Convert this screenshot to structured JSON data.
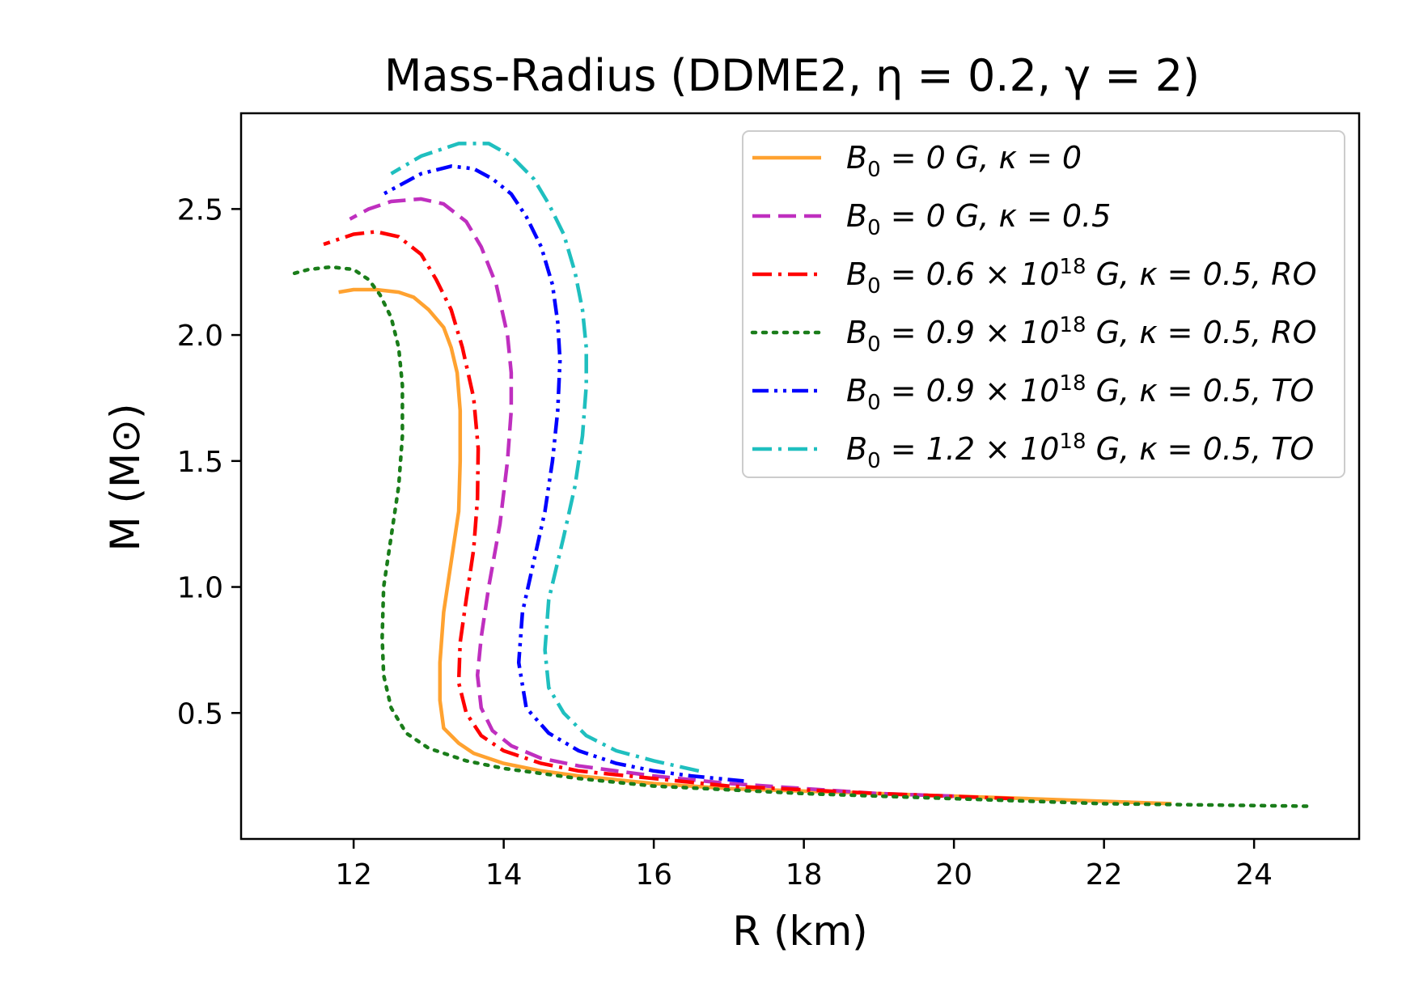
{
  "chart_data": {
    "type": "line",
    "title": "Mass-Radius (DDME2, η = 0.2, γ = 2)",
    "xlabel": "R (km)",
    "ylabel": "M (M⊙)",
    "xlim": [
      10.5,
      25.4
    ],
    "ylim": [
      0.0,
      2.88
    ],
    "xticks": [
      12,
      14,
      16,
      18,
      20,
      22,
      24
    ],
    "yticks": [
      0.5,
      1.0,
      1.5,
      2.0,
      2.5
    ],
    "xtick_labels": [
      "12",
      "14",
      "16",
      "18",
      "20",
      "22",
      "24"
    ],
    "ytick_labels": [
      "0.5",
      "1.0",
      "1.5",
      "2.0",
      "2.5"
    ],
    "grid": false,
    "legend_position": "top-right",
    "series": [
      {
        "name": "B0 = 0 G, κ = 0",
        "legend_main": "B",
        "legend_sub": "0",
        "legend_sup": "",
        "legend_rest": " = 0 G, κ = 0",
        "color": "#ffa230",
        "style": "solid",
        "x": [
          22.9,
          21.0,
          19.0,
          17.0,
          16.0,
          15.0,
          14.5,
          14.0,
          13.6,
          13.4,
          13.2,
          13.15,
          13.15,
          13.2,
          13.3,
          13.4,
          13.42,
          13.42,
          13.38,
          13.3,
          13.2,
          13.0,
          12.8,
          12.6,
          12.3,
          12.0,
          11.8
        ],
        "y": [
          0.14,
          0.16,
          0.18,
          0.2,
          0.22,
          0.25,
          0.27,
          0.3,
          0.34,
          0.38,
          0.44,
          0.55,
          0.7,
          0.9,
          1.1,
          1.3,
          1.5,
          1.7,
          1.85,
          1.95,
          2.03,
          2.1,
          2.15,
          2.17,
          2.18,
          2.18,
          2.17
        ]
      },
      {
        "name": "B0 = 0 G, κ = 0.5",
        "legend_main": "B",
        "legend_sub": "0",
        "legend_sup": "",
        "legend_rest": " = 0 G, κ = 0.5",
        "color": "#bf2fbf",
        "style": "dashed",
        "x": [
          20.0,
          19.0,
          18.0,
          17.0,
          16.0,
          15.0,
          14.5,
          14.1,
          13.85,
          13.7,
          13.65,
          13.7,
          13.8,
          13.95,
          14.05,
          14.1,
          14.1,
          14.05,
          13.9,
          13.7,
          13.5,
          13.2,
          12.9,
          12.5,
          12.2,
          11.95
        ],
        "y": [
          0.17,
          0.18,
          0.2,
          0.22,
          0.25,
          0.29,
          0.32,
          0.37,
          0.43,
          0.52,
          0.65,
          0.8,
          1.0,
          1.25,
          1.5,
          1.7,
          1.85,
          2.0,
          2.2,
          2.35,
          2.45,
          2.52,
          2.54,
          2.53,
          2.5,
          2.46
        ]
      },
      {
        "name": "B0 = 0.6 × 10^18 G, κ = 0.5, RO",
        "legend_main": "B",
        "legend_sub": "0",
        "legend_pre": " = 0.6 × 10",
        "legend_sup": "18",
        "legend_rest": " G, κ = 0.5, RO",
        "color": "#ff0000",
        "style": "dashdot",
        "x": [
          20.8,
          19.0,
          17.0,
          16.0,
          15.0,
          14.5,
          14.0,
          13.7,
          13.5,
          13.4,
          13.42,
          13.5,
          13.6,
          13.65,
          13.66,
          13.6,
          13.45,
          13.3,
          13.1,
          12.9,
          12.6,
          12.3,
          12.0,
          11.6
        ],
        "y": [
          0.16,
          0.18,
          0.21,
          0.24,
          0.27,
          0.3,
          0.35,
          0.41,
          0.5,
          0.62,
          0.78,
          0.95,
          1.15,
          1.35,
          1.55,
          1.75,
          1.95,
          2.1,
          2.22,
          2.32,
          2.39,
          2.41,
          2.4,
          2.36
        ]
      },
      {
        "name": "B0 = 0.9 × 10^18 G, κ = 0.5, RO",
        "legend_main": "B",
        "legend_sub": "0",
        "legend_pre": " = 0.9 × 10",
        "legend_sup": "18",
        "legend_rest": " G, κ = 0.5, RO",
        "color": "#1a7d1a",
        "style": "dotted",
        "x": [
          24.7,
          22.0,
          20.0,
          18.0,
          16.0,
          15.0,
          14.0,
          13.5,
          13.0,
          12.7,
          12.5,
          12.4,
          12.38,
          12.4,
          12.5,
          12.6,
          12.65,
          12.65,
          12.6,
          12.5,
          12.35,
          12.2,
          12.0,
          11.7,
          11.4,
          11.15
        ],
        "y": [
          0.13,
          0.14,
          0.16,
          0.18,
          0.21,
          0.24,
          0.28,
          0.31,
          0.36,
          0.42,
          0.52,
          0.65,
          0.8,
          1.0,
          1.2,
          1.4,
          1.6,
          1.8,
          1.95,
          2.07,
          2.16,
          2.22,
          2.26,
          2.27,
          2.26,
          2.24
        ]
      },
      {
        "name": "B0 = 0.9 × 10^18 G, κ = 0.5, TO",
        "legend_main": "B",
        "legend_sub": "0",
        "legend_pre": " = 0.9 × 10",
        "legend_sup": "18",
        "legend_rest": " G, κ = 0.5, TO",
        "color": "#0000ff",
        "style": "dashdotdot",
        "x": [
          17.2,
          16.5,
          16.0,
          15.5,
          15.0,
          14.6,
          14.3,
          14.2,
          14.25,
          14.4,
          14.55,
          14.65,
          14.72,
          14.75,
          14.72,
          14.65,
          14.5,
          14.3,
          14.1,
          13.85,
          13.6,
          13.3,
          12.9,
          12.4
        ],
        "y": [
          0.23,
          0.25,
          0.27,
          0.3,
          0.35,
          0.42,
          0.52,
          0.7,
          0.9,
          1.1,
          1.3,
          1.5,
          1.7,
          1.9,
          2.05,
          2.2,
          2.35,
          2.47,
          2.56,
          2.62,
          2.66,
          2.67,
          2.64,
          2.56
        ]
      },
      {
        "name": "B0 = 1.2 × 10^18 G, κ = 0.5, TO",
        "legend_main": "B",
        "legend_sub": "0",
        "legend_pre": " = 1.2 × 10",
        "legend_sup": "18",
        "legend_rest": " G, κ = 0.5, TO",
        "color": "#1fbfbf",
        "style": "dashdot",
        "x": [
          16.6,
          16.0,
          15.5,
          15.1,
          14.8,
          14.6,
          14.55,
          14.6,
          14.8,
          14.95,
          15.05,
          15.1,
          15.1,
          15.05,
          14.95,
          14.8,
          14.6,
          14.4,
          14.1,
          13.8,
          13.4,
          12.9,
          12.5
        ],
        "y": [
          0.27,
          0.31,
          0.35,
          0.41,
          0.5,
          0.6,
          0.75,
          0.95,
          1.2,
          1.4,
          1.6,
          1.8,
          1.95,
          2.1,
          2.25,
          2.4,
          2.52,
          2.62,
          2.71,
          2.76,
          2.76,
          2.71,
          2.64
        ]
      }
    ]
  }
}
